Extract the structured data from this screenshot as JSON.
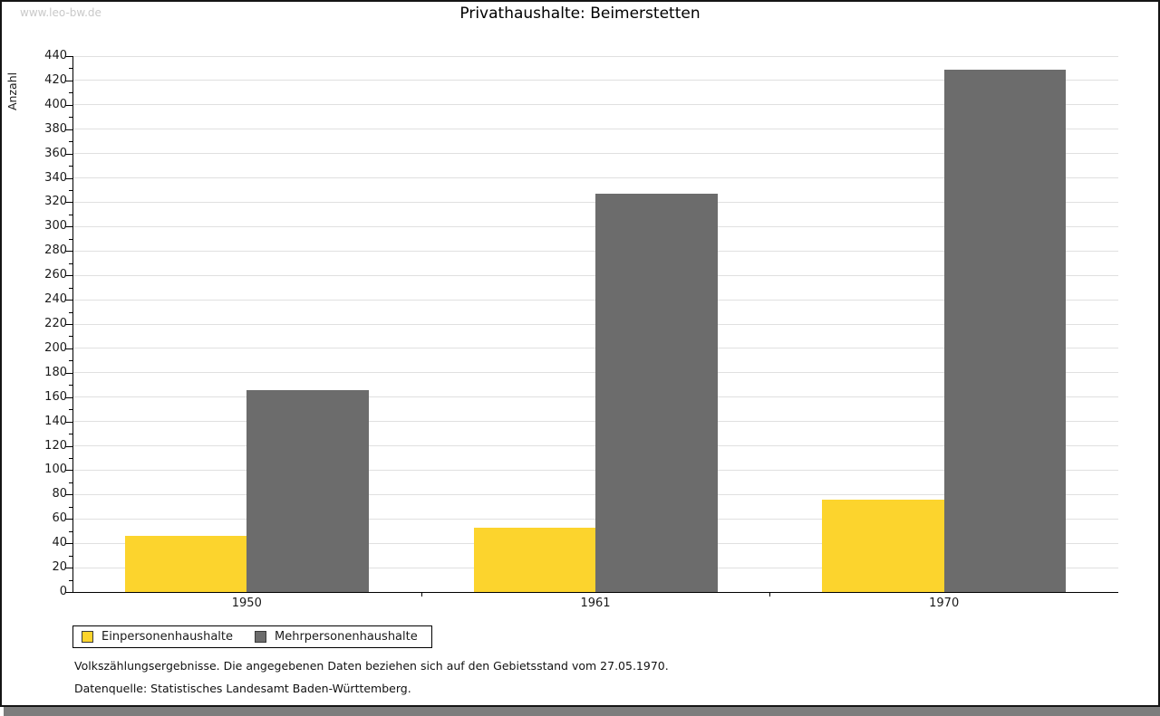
{
  "watermark": "www.leo-bw.de",
  "chart_data": {
    "type": "bar",
    "title": "Privathaushalte: Beimerstetten",
    "ylabel": "Anzahl",
    "xlabel": "",
    "categories": [
      "1950",
      "1961",
      "1970"
    ],
    "series": [
      {
        "name": "Einpersonenhaushalte",
        "color": "#fcd42d",
        "values": [
          46,
          53,
          76
        ]
      },
      {
        "name": "Mehrpersonenhaushalte",
        "color": "#6c6c6c",
        "values": [
          166,
          327,
          429
        ]
      }
    ],
    "ylim": [
      0,
      440
    ],
    "ytick_step": 20,
    "minor_tick_step": 10,
    "grid": true,
    "legend_position": "bottom-left"
  },
  "footnotes": {
    "line1": "Volkszählungsergebnisse. Die angegebenen Daten beziehen sich auf den Gebietsstand vom 27.05.1970.",
    "line2": "Datenquelle: Statistisches Landesamt Baden-Württemberg."
  },
  "colors": {
    "bar_yellow": "#fcd42d",
    "bar_gray": "#6c6c6c",
    "gridline": "#e0e0e0",
    "axis": "#000000",
    "watermark": "#c9c9c9",
    "window_shadow": "#7d7d7d"
  }
}
